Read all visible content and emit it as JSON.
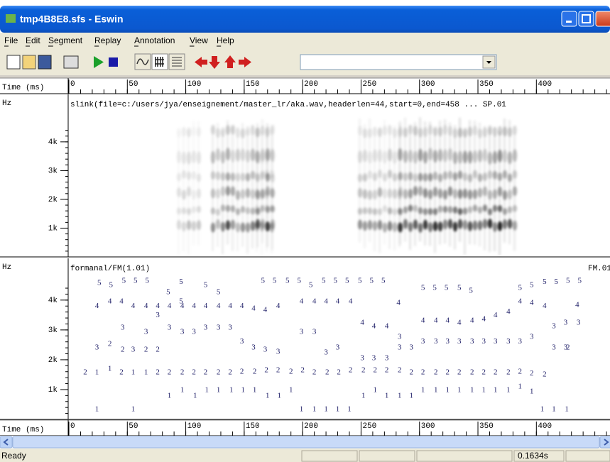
{
  "window": {
    "title": "tmp4B8E8.sfs - Eswin"
  },
  "menu": [
    "File",
    "Edit",
    "Segment",
    "Replay",
    "Annotation",
    "View",
    "Help"
  ],
  "status": {
    "ready": "Ready",
    "time": "0.1634s"
  },
  "time_axis": {
    "label": "Time (ms)",
    "xlim": [
      0,
      463
    ],
    "xticks": [
      0,
      50,
      100,
      150,
      200,
      250,
      300,
      350,
      400
    ]
  },
  "chart_data": [
    {
      "type": "spectrogram",
      "y_label": "Hz",
      "title": "slink(file=c:/users/jya/enseignement/master_lr/aka.wav,headerlen=44,start=0,end=458 ... SP.01",
      "ylim": [
        0,
        5650
      ],
      "yticks": [
        {
          "value": 1000,
          "label": "1k"
        },
        {
          "value": 2000,
          "label": "2k"
        },
        {
          "value": 3000,
          "label": "3k"
        },
        {
          "value": 4000,
          "label": "4k"
        }
      ]
    },
    {
      "type": "scatter",
      "y_label": "Hz",
      "title": "formanal/FM(1.01)",
      "title_right": "FM.01",
      "ylim": [
        0,
        5400
      ],
      "color": "#1c1c66",
      "yticks": [
        {
          "value": 1000,
          "label": "1k"
        },
        {
          "value": 2000,
          "label": "2k"
        },
        {
          "value": 3000,
          "label": "3k"
        },
        {
          "value": 4000,
          "label": "4k"
        }
      ],
      "series": [
        {
          "name": "1",
          "x": [
            24,
            55,
            86,
            97,
            108,
            118,
            128,
            139,
            149,
            159,
            170,
            180,
            190,
            199,
            210,
            220,
            230,
            240,
            252,
            262,
            272,
            283,
            293,
            303,
            314,
            324,
            334,
            345,
            355,
            365,
            376,
            386,
            396,
            405,
            415,
            426,
            24,
            35,
            55,
            66
          ],
          "values": [
            330,
            330,
            790,
            980,
            790,
            980,
            980,
            980,
            980,
            980,
            790,
            790,
            980,
            330,
            330,
            330,
            330,
            330,
            790,
            980,
            790,
            790,
            790,
            980,
            980,
            980,
            980,
            980,
            980,
            980,
            980,
            1100,
            930,
            330,
            330,
            330,
            1570,
            1690,
            1570,
            1570
          ]
        },
        {
          "name": "2",
          "x": [
            14,
            45,
            76,
            86,
            97,
            107,
            117,
            128,
            138,
            148,
            159,
            169,
            179,
            190,
            200,
            210,
            221,
            231,
            241,
            252,
            262,
            272,
            283,
            293,
            303,
            314,
            324,
            334,
            345,
            355,
            365,
            376,
            386,
            396,
            407,
            35,
            46,
            66,
            76,
            427
          ],
          "values": [
            1570,
            1570,
            1570,
            1570,
            1570,
            1570,
            1570,
            1570,
            1570,
            1600,
            1600,
            1640,
            1640,
            1600,
            1640,
            1570,
            1570,
            1570,
            1640,
            1640,
            1640,
            1640,
            1640,
            1570,
            1570,
            1570,
            1570,
            1570,
            1570,
            1570,
            1570,
            1570,
            1600,
            1540,
            1500,
            2520,
            2330,
            2330,
            2330,
            2400
          ]
        },
        {
          "name": "3",
          "x": [
            24,
            55,
            46,
            66,
            76,
            86,
            97,
            107,
            117,
            128,
            138,
            148,
            158,
            168,
            179,
            199,
            210,
            220,
            230,
            251,
            261,
            272,
            283,
            293,
            283,
            303,
            314,
            324,
            334,
            345,
            355,
            365,
            376,
            386,
            396,
            415,
            425,
            415,
            425,
            436
          ],
          "values": [
            2400,
            2330,
            3070,
            2930,
            3480,
            3070,
            2930,
            2930,
            3070,
            3070,
            3070,
            2600,
            2400,
            2330,
            2260,
            2930,
            2930,
            2240,
            2400,
            2050,
            2050,
            2050,
            2400,
            2400,
            2760,
            2600,
            2600,
            2600,
            2600,
            2600,
            2600,
            2600,
            2600,
            2600,
            2760,
            2400,
            2400,
            3120,
            3240,
            3240
          ]
        },
        {
          "name": "4",
          "x": [
            24,
            35,
            45,
            55,
            66,
            76,
            86,
            97,
            107,
            117,
            128,
            138,
            148,
            158,
            168,
            179,
            199,
            210,
            220,
            230,
            241,
            251,
            261,
            272,
            282,
            303,
            314,
            324,
            334,
            345,
            355,
            365,
            376,
            386,
            396,
            407,
            435
          ],
          "values": [
            3790,
            3950,
            3950,
            3790,
            3790,
            3790,
            3790,
            3790,
            3790,
            3790,
            3790,
            3790,
            3790,
            3710,
            3670,
            3790,
            3950,
            3950,
            3950,
            3950,
            3950,
            3240,
            3120,
            3120,
            3900,
            3310,
            3310,
            3310,
            3240,
            3310,
            3360,
            3480,
            3600,
            3950,
            3900,
            3790,
            3830
          ]
        },
        {
          "name": "5",
          "x": [
            26,
            36,
            47,
            57,
            67,
            85,
            96,
            117,
            128,
            166,
            176,
            187,
            197,
            207,
            218,
            228,
            238,
            249,
            259,
            269,
            303,
            313,
            323,
            334,
            344,
            386,
            396,
            407,
            417,
            427,
            437,
            96
          ],
          "values": [
            4570,
            4500,
            4640,
            4640,
            4640,
            4260,
            4600,
            4500,
            4260,
            4640,
            4640,
            4640,
            4640,
            4500,
            4640,
            4640,
            4640,
            4640,
            4640,
            4640,
            4400,
            4400,
            4400,
            4400,
            4310,
            4400,
            4500,
            4600,
            4600,
            4640,
            4640,
            3950
          ]
        }
      ]
    }
  ]
}
